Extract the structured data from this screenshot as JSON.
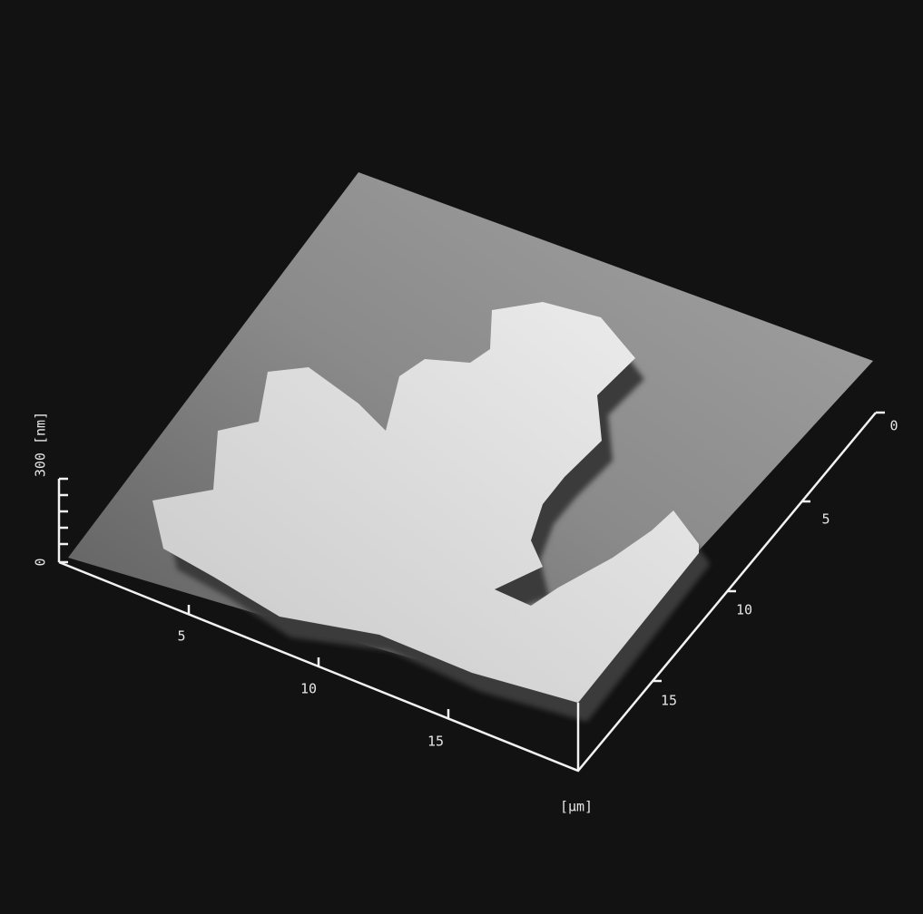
{
  "z_axis": {
    "max_label": "300 [nm]",
    "min_label": 0
  },
  "front_axis": {
    "ticks": [
      5,
      10,
      15
    ]
  },
  "side_axis": {
    "ticks": [
      0,
      5,
      10,
      15
    ]
  },
  "unit_label": "[µm]"
}
